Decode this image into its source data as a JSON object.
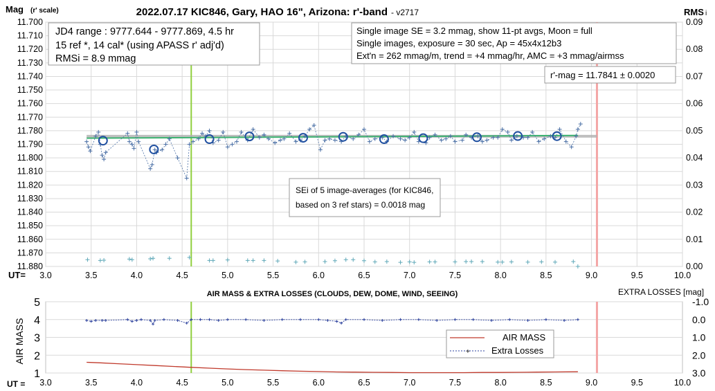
{
  "title": "2022.07.17 KIC846, Gary, HAO 16\", Arizona: r'-band",
  "version": "- v2717",
  "top_chart": {
    "ylabel_left_main": "Mag",
    "ylabel_left_sub": "(r' scale)",
    "ylabel_right_main": "RMS",
    "ylabel_right_sub": "i",
    "xlabel": "UT=",
    "info_box_left": [
      "JD4 range : 9777.644 - 9777.869,  4.5  hr",
      "15 ref *, 14 cal* (using APASS r' adj'd)",
      "RMSi = 8.9 mmag"
    ],
    "info_box_right": [
      "Single image SE = 3.2 mmag, show  11-pt avgs, Moon = full",
      "Single images, exposure = 30 sec, Ap = 45x4x12b3",
      "Ext'n = 262 mmag/m, trend = +4  mmag/hr, AMC = +3 mmag/airmss"
    ],
    "result_box": "r'-mag = 11.7841 ± 0.0020",
    "sei_box": [
      "SEi of 5 image-averages (for KIC846,",
      "based on 3 ref stars) = 0.0018 mag"
    ]
  },
  "bottom_chart": {
    "title": "AIR MASS & EXTRA LOSSES (CLOUDS, DEW, DOME, WIND, SEEING)",
    "ylabel_left": "AIR MASS",
    "ylabel_right": "EXTRA LOSSES [mag]",
    "xlabel": "UT =",
    "legend": [
      "AIR MASS",
      "Extra Losses"
    ]
  },
  "colors": {
    "mag_points": "#4a6fa5",
    "avg_circles": "#1f4fa0",
    "trend_line": "#3cb371",
    "gray_line": "#b0b0b0",
    "green_vline": "#8fcf3c",
    "pink_vline": "#f4a6a6",
    "rms_points": "#5fa8b8",
    "airmass": "#c0392b",
    "extra_losses": "#2a3f9c",
    "grid": "#d9d9d9"
  },
  "chart_data": [
    {
      "type": "scatter",
      "title": "2022.07.17 KIC846, Gary, HAO 16\", Arizona: r'-band",
      "xlabel": "UT=",
      "ylabel": "Mag (r' scale)",
      "y2label": "RMS i",
      "xlim": [
        3.0,
        10.0
      ],
      "ylim": [
        11.88,
        11.7
      ],
      "y_inverted": true,
      "y2lim": [
        0.0,
        0.09
      ],
      "x_ticks": [
        "3.0",
        "3.5",
        "4.0",
        "4.5",
        "5.0",
        "5.5",
        "6.0",
        "6.5",
        "7.0",
        "7.5",
        "8.0",
        "8.5",
        "9.0",
        "9.5",
        "10.0"
      ],
      "y_ticks": [
        "11.700",
        "11.710",
        "11.720",
        "11.730",
        "11.740",
        "11.750",
        "11.760",
        "11.770",
        "11.780",
        "11.790",
        "11.800",
        "11.810",
        "11.820",
        "11.830",
        "11.840",
        "11.850",
        "11.860",
        "11.870",
        "11.880"
      ],
      "y2_ticks": [
        "0.09",
        "0.08",
        "0.07",
        "0.06",
        "0.05",
        "0.04",
        "0.03",
        "0.02",
        "0.01",
        "0.00"
      ],
      "grid": true,
      "vertical_markers": [
        4.6,
        9.06
      ],
      "reference_line": {
        "value": 11.7841,
        "x_range": [
          3.45,
          9.06
        ]
      },
      "trend_line": {
        "x": [
          3.45,
          8.85
        ],
        "y": [
          11.7855,
          11.7835
        ]
      },
      "series": [
        {
          "name": "single images",
          "x": [
            3.45,
            3.47,
            3.49,
            3.55,
            3.58,
            3.6,
            3.62,
            3.64,
            3.66,
            3.9,
            3.92,
            3.95,
            3.97,
            4.0,
            4.02,
            4.15,
            4.17,
            4.2,
            4.22,
            4.28,
            4.32,
            4.36,
            4.45,
            4.55,
            4.58,
            4.62,
            4.68,
            4.72,
            4.76,
            4.8,
            4.84,
            4.9,
            4.95,
            5.0,
            5.05,
            5.1,
            5.15,
            5.22,
            5.28,
            5.35,
            5.4,
            5.45,
            5.52,
            5.58,
            5.62,
            5.68,
            5.75,
            5.8,
            5.85,
            5.9,
            5.95,
            6.02,
            6.07,
            6.12,
            6.18,
            6.25,
            6.3,
            6.38,
            6.44,
            6.5,
            6.56,
            6.62,
            6.7,
            6.75,
            6.82,
            6.9,
            6.95,
            7.0,
            7.05,
            7.1,
            7.18,
            7.22,
            7.28,
            7.35,
            7.4,
            7.45,
            7.5,
            7.58,
            7.62,
            7.68,
            7.75,
            7.8,
            7.85,
            7.92,
            7.97,
            8.02,
            8.08,
            8.12,
            8.18,
            8.25,
            8.3,
            8.35,
            8.42,
            8.48,
            8.55,
            8.6,
            8.65,
            8.72,
            8.78,
            8.83,
            8.85,
            8.88
          ],
          "y": [
            11.788,
            11.792,
            11.795,
            11.784,
            11.781,
            11.79,
            11.798,
            11.801,
            11.796,
            11.782,
            11.788,
            11.79,
            11.793,
            11.781,
            11.788,
            11.808,
            11.805,
            11.794,
            11.796,
            11.794,
            11.79,
            11.786,
            11.8,
            11.815,
            11.79,
            11.788,
            11.786,
            11.782,
            11.784,
            11.78,
            11.789,
            11.787,
            11.781,
            11.792,
            11.79,
            11.788,
            11.781,
            11.787,
            11.779,
            11.785,
            11.783,
            11.786,
            11.789,
            11.787,
            11.786,
            11.782,
            11.788,
            11.787,
            11.784,
            11.779,
            11.776,
            11.794,
            11.787,
            11.786,
            11.787,
            11.788,
            11.784,
            11.786,
            11.783,
            11.779,
            11.788,
            11.786,
            11.785,
            11.788,
            11.784,
            11.786,
            11.787,
            11.785,
            11.781,
            11.788,
            11.789,
            11.785,
            11.783,
            11.787,
            11.786,
            11.784,
            11.788,
            11.787,
            11.783,
            11.785,
            11.784,
            11.788,
            11.787,
            11.785,
            11.785,
            11.779,
            11.781,
            11.787,
            11.784,
            11.785,
            11.785,
            11.781,
            11.788,
            11.786,
            11.784,
            11.785,
            11.779,
            11.788,
            11.792,
            11.784,
            11.779,
            11.775
          ]
        },
        {
          "name": "11-pt averages",
          "x": [
            3.63,
            4.19,
            4.8,
            5.24,
            5.83,
            6.27,
            6.72,
            7.15,
            7.74,
            8.19,
            8.62
          ],
          "y": [
            11.7873,
            11.7938,
            11.7862,
            11.7842,
            11.7852,
            11.7845,
            11.7862,
            11.7855,
            11.7848,
            11.7839,
            11.784
          ]
        },
        {
          "name": "RMSi",
          "axis": "y2",
          "x": [
            3.46,
            3.6,
            3.64,
            3.92,
            3.95,
            4.15,
            4.18,
            4.36,
            4.58,
            4.8,
            4.84,
            5.0,
            5.22,
            5.28,
            5.4,
            5.55,
            5.75,
            5.85,
            6.07,
            6.18,
            6.3,
            6.38,
            6.5,
            6.62,
            6.75,
            6.9,
            7.0,
            7.05,
            7.22,
            7.28,
            7.5,
            7.62,
            7.68,
            7.8,
            7.97,
            8.02,
            8.12,
            8.3,
            8.45,
            8.6,
            8.8,
            8.85
          ],
          "y": [
            0.0025,
            0.0022,
            0.0023,
            0.0027,
            0.0025,
            0.0028,
            0.003,
            0.003,
            0.0033,
            0.0022,
            0.0022,
            0.0024,
            0.0022,
            0.0022,
            0.0022,
            0.002,
            0.0016,
            0.0017,
            0.0018,
            0.0021,
            0.0025,
            0.0025,
            0.0021,
            0.0017,
            0.0018,
            0.0015,
            0.0017,
            0.0015,
            0.0017,
            0.0017,
            0.0017,
            0.0018,
            0.0018,
            0.0018,
            0.0016,
            0.0016,
            0.0017,
            0.0016,
            0.0017,
            0.0016,
            0.0018,
            0.0
          ]
        }
      ]
    },
    {
      "type": "line",
      "title": "AIR MASS & EXTRA LOSSES (CLOUDS, DEW, DOME, WIND, SEEING)",
      "xlabel": "UT =",
      "ylabel": "AIR MASS",
      "y2label": "EXTRA LOSSES [mag]",
      "xlim": [
        3.0,
        10.0
      ],
      "ylim": [
        1,
        5
      ],
      "y2lim": [
        3.0,
        -1.0
      ],
      "x_ticks": [
        "3.0",
        "3.5",
        "4.0",
        "4.5",
        "5.0",
        "5.5",
        "6.0",
        "6.5",
        "7.0",
        "7.5",
        "8.0",
        "8.5",
        "9.0",
        "9.5",
        "10.0"
      ],
      "y_ticks": [
        "5",
        "4",
        "3",
        "2",
        "1"
      ],
      "y2_ticks": [
        "-1.0",
        "0.0",
        "1.0",
        "2.0",
        "3.0"
      ],
      "legend_position": "lower-right",
      "vertical_markers": [
        4.6,
        9.06
      ],
      "series": [
        {
          "name": "AIR MASS",
          "x": [
            3.45,
            3.6,
            3.8,
            4.0,
            4.2,
            4.4,
            4.6,
            4.8,
            5.0,
            5.2,
            5.4,
            5.6,
            5.8,
            6.0,
            6.2,
            6.4,
            6.6,
            6.8,
            7.0,
            7.2,
            7.4,
            7.6,
            7.8,
            8.0,
            8.2,
            8.4,
            8.6,
            8.85
          ],
          "y": [
            1.6,
            1.57,
            1.52,
            1.47,
            1.42,
            1.37,
            1.32,
            1.27,
            1.23,
            1.19,
            1.16,
            1.13,
            1.1,
            1.08,
            1.06,
            1.05,
            1.04,
            1.03,
            1.02,
            1.02,
            1.02,
            1.02,
            1.03,
            1.03,
            1.04,
            1.05,
            1.06,
            1.07
          ]
        },
        {
          "name": "Extra Losses",
          "axis": "y2",
          "x": [
            3.45,
            3.5,
            3.55,
            3.62,
            3.66,
            3.9,
            3.95,
            4.0,
            4.05,
            4.15,
            4.18,
            4.2,
            4.3,
            4.45,
            4.55,
            4.6,
            4.7,
            4.8,
            4.9,
            5.0,
            5.2,
            5.4,
            5.6,
            5.8,
            6.0,
            6.1,
            6.2,
            6.25,
            6.3,
            6.5,
            6.7,
            6.9,
            7.1,
            7.3,
            7.5,
            7.7,
            7.9,
            8.1,
            8.3,
            8.5,
            8.7,
            8.85
          ],
          "y": [
            0.05,
            0.1,
            0.05,
            0.05,
            0.05,
            0.0,
            0.1,
            0.05,
            0.0,
            0.05,
            0.25,
            0.05,
            0.0,
            0.05,
            0.2,
            0.0,
            0.0,
            0.0,
            0.05,
            0.0,
            0.0,
            0.05,
            0.0,
            0.0,
            0.0,
            0.05,
            0.1,
            0.2,
            0.0,
            0.0,
            0.05,
            0.0,
            0.0,
            0.05,
            0.0,
            0.0,
            0.05,
            0.0,
            0.05,
            0.0,
            0.05,
            0.0
          ]
        }
      ]
    }
  ]
}
